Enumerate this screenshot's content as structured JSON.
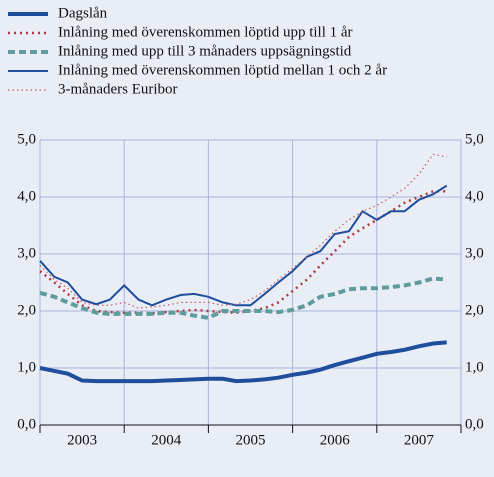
{
  "chart_data": {
    "type": "line",
    "categories": [
      "2003",
      "2004",
      "2005",
      "2006",
      "2007"
    ],
    "x": [
      2003,
      2003.17,
      2003.33,
      2003.5,
      2003.67,
      2003.83,
      2004,
      2004.17,
      2004.33,
      2004.5,
      2004.67,
      2004.83,
      2005,
      2005.17,
      2005.33,
      2005.5,
      2005.67,
      2005.83,
      2006,
      2006.17,
      2006.33,
      2006.5,
      2006.67,
      2006.83,
      2007,
      2007.17,
      2007.33,
      2007.5,
      2007.67,
      2007.83
    ],
    "xlim": [
      2003,
      2008
    ],
    "xticks": [
      2003,
      2004,
      2005,
      2006,
      2007,
      2008
    ],
    "ylim": [
      0,
      5
    ],
    "yticks": [
      {
        "value": 0,
        "label": "0,0"
      },
      {
        "value": 1,
        "label": "1,0"
      },
      {
        "value": 2,
        "label": "2,0"
      },
      {
        "value": 3,
        "label": "3,0"
      },
      {
        "value": 4,
        "label": "4,0"
      },
      {
        "value": 5,
        "label": "5,0"
      }
    ],
    "y2lim": [
      0,
      5
    ],
    "y2ticks": [
      {
        "value": 0,
        "label": "0,0"
      },
      {
        "value": 1,
        "label": "1,0"
      },
      {
        "value": 2,
        "label": "2,0"
      },
      {
        "value": 3,
        "label": "3,0"
      },
      {
        "value": 4,
        "label": "4,0"
      },
      {
        "value": 5,
        "label": "5,0"
      }
    ],
    "grid": true,
    "series": [
      {
        "name": "Dagslån",
        "color": "#1f4e9c",
        "values": [
          1.0,
          0.95,
          0.9,
          0.78,
          0.77,
          0.77,
          0.77,
          0.77,
          0.77,
          0.78,
          0.79,
          0.8,
          0.81,
          0.81,
          0.77,
          0.78,
          0.8,
          0.83,
          0.88,
          0.92,
          0.97,
          1.05,
          1.12,
          1.18,
          1.25,
          1.28,
          1.32,
          1.38,
          1.43,
          1.45
        ]
      },
      {
        "name": "Inlåning med överenskommen löptid upp till 1 år",
        "color": "#b03a3a",
        "values": [
          2.7,
          2.5,
          2.3,
          2.1,
          2.0,
          1.98,
          1.97,
          1.97,
          1.96,
          1.98,
          2.0,
          2.02,
          2.0,
          1.98,
          1.97,
          2.0,
          2.05,
          2.15,
          2.35,
          2.55,
          2.8,
          3.05,
          3.3,
          3.45,
          3.6,
          3.75,
          3.9,
          4.0,
          4.1,
          4.1
        ]
      },
      {
        "name": "Inlåning med upp till 3 månaders uppsägningstid",
        "color": "#5f9c9c",
        "values": [
          2.32,
          2.25,
          2.15,
          2.05,
          1.97,
          1.95,
          1.95,
          1.95,
          1.95,
          1.97,
          1.97,
          1.92,
          1.88,
          2.0,
          2.0,
          2.0,
          2.0,
          1.98,
          2.02,
          2.1,
          2.25,
          2.3,
          2.38,
          2.4,
          2.4,
          2.42,
          2.45,
          2.5,
          2.57,
          2.55
        ]
      },
      {
        "name": "Inlåning med överenskommen löptid mellan 1 och 2 år",
        "color": "#1f4e9c",
        "values": [
          2.88,
          2.6,
          2.5,
          2.2,
          2.12,
          2.2,
          2.45,
          2.2,
          2.1,
          2.2,
          2.28,
          2.3,
          2.25,
          2.15,
          2.1,
          2.1,
          2.3,
          2.5,
          2.7,
          2.95,
          3.05,
          3.35,
          3.4,
          3.75,
          3.6,
          3.75,
          3.75,
          3.95,
          4.05,
          4.2
        ]
      },
      {
        "name": "3-månaders Euribor",
        "color": "#c85a5a",
        "values": [
          2.8,
          2.55,
          2.4,
          2.15,
          2.1,
          2.1,
          2.15,
          2.05,
          2.07,
          2.1,
          2.15,
          2.15,
          2.15,
          2.1,
          2.12,
          2.2,
          2.35,
          2.55,
          2.75,
          2.95,
          3.15,
          3.4,
          3.6,
          3.75,
          3.85,
          4.0,
          4.15,
          4.4,
          4.75,
          4.7
        ]
      }
    ]
  }
}
